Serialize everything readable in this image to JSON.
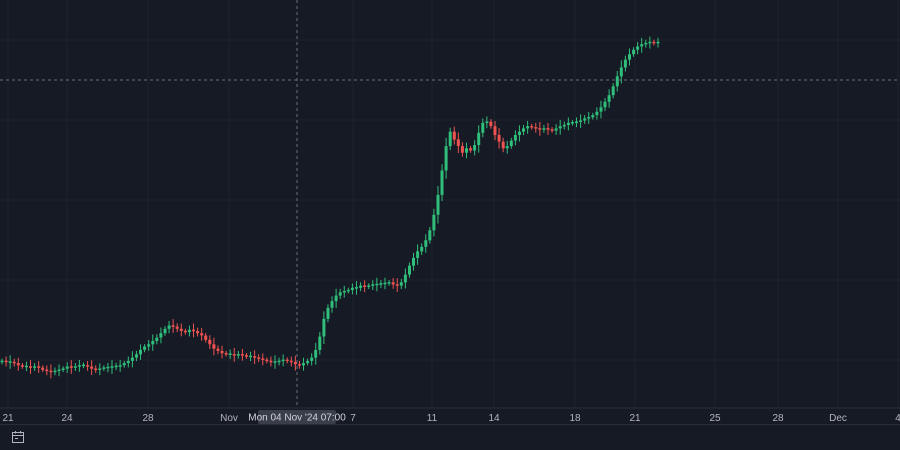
{
  "chart_data": {
    "type": "candlestick",
    "x_tick_labels": [
      "21",
      "24",
      "28",
      "Nov",
      "7",
      "11",
      "14",
      "18",
      "21",
      "25",
      "28",
      "Dec",
      "4"
    ],
    "crosshair_label": "Mon 04 Nov '24  07:00",
    "series_values": [
      18,
      17,
      17,
      16,
      14,
      13,
      13,
      12,
      13,
      12,
      10,
      9,
      8,
      9,
      10,
      11,
      13,
      12,
      13,
      14,
      14,
      13,
      11,
      10,
      11,
      12,
      12,
      13,
      13,
      14,
      16,
      18,
      21,
      24,
      28,
      31,
      33,
      36,
      39,
      43,
      47,
      50,
      49,
      47,
      45,
      44,
      46,
      45,
      43,
      41,
      37,
      33,
      29,
      27,
      25,
      24,
      24,
      23,
      24,
      23,
      22,
      22,
      21,
      20,
      19,
      18,
      17,
      17,
      18,
      19,
      18,
      17,
      15,
      14,
      16,
      18,
      21,
      28,
      40,
      56,
      66,
      72,
      77,
      80,
      81,
      82,
      84,
      84,
      86,
      85,
      86,
      87,
      87,
      88,
      88,
      89,
      87,
      86,
      89,
      96,
      104,
      111,
      117,
      121,
      127,
      136,
      150,
      168,
      190,
      212,
      225,
      218,
      212,
      206,
      210,
      208,
      213,
      224,
      233,
      234,
      230,
      222,
      216,
      210,
      212,
      217,
      222,
      225,
      228,
      230,
      229,
      228,
      227,
      228,
      227,
      226,
      228,
      230,
      231,
      233,
      233,
      234,
      235,
      237,
      238,
      240,
      243,
      247,
      252,
      258,
      266,
      275,
      283,
      290,
      295,
      299,
      302,
      304,
      305,
      306,
      305,
      306
    ],
    "x_range": [
      "Oct 21",
      "Dec 4"
    ],
    "grid": true,
    "colors": {
      "up": "#26a69a",
      "up_bright": "#2fbf7a",
      "down": "#ef5350",
      "background": "#161a25",
      "grid": "#1e222d",
      "text": "#b2b5be"
    }
  },
  "toolbar": {
    "date_range_icon": "calendar-icon"
  }
}
